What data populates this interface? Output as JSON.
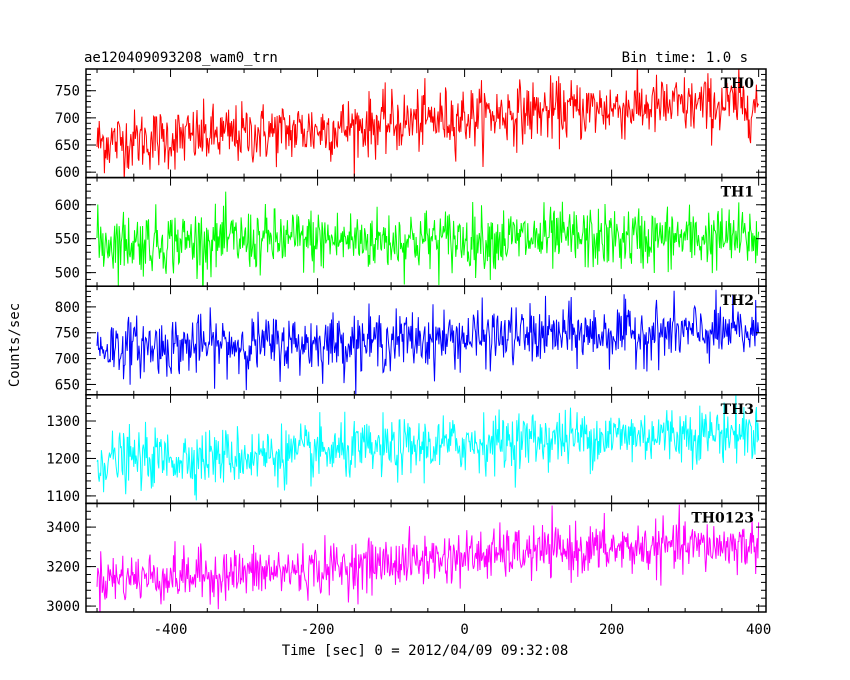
{
  "header": {
    "title": "ae120409093208_wam0_trn",
    "bin_time": "Bin time: 1.0 s"
  },
  "chart_data": {
    "type": "line",
    "title": "ae120409093208_wam0_trn",
    "subtitle": "Bin time: 1.0 s",
    "xlabel": "Time [sec] 0 = 2012/04/09 09:32:08",
    "ylabel": "Counts/sec",
    "xlim": [
      -515,
      410
    ],
    "xticks": [
      -400,
      -200,
      0,
      200,
      400
    ],
    "x_range_data": [
      -500,
      400
    ],
    "series": [
      {
        "name": "TH0",
        "color": "#ff0000",
        "ylim": [
          590,
          790
        ],
        "yticks": [
          600,
          650,
          700,
          750
        ],
        "x": [
          -500,
          -400,
          -300,
          -200,
          -100,
          0,
          100,
          200,
          300,
          400
        ],
        "values": [
          655,
          662,
          670,
          678,
          690,
          702,
          712,
          718,
          722,
          725
        ],
        "noise_sd": 28
      },
      {
        "name": "TH1",
        "color": "#00ff00",
        "ylim": [
          480,
          640
        ],
        "yticks": [
          500,
          550,
          600
        ],
        "x": [
          -500,
          -400,
          -300,
          -200,
          -100,
          0,
          100,
          200,
          300,
          400
        ],
        "values": [
          545,
          546,
          547,
          548,
          548,
          549,
          550,
          550,
          551,
          551
        ],
        "noise_sd": 23
      },
      {
        "name": "TH2",
        "color": "#0000ff",
        "ylim": [
          630,
          840
        ],
        "yticks": [
          650,
          700,
          750,
          800
        ],
        "x": [
          -500,
          -400,
          -300,
          -200,
          -100,
          0,
          100,
          200,
          300,
          400
        ],
        "values": [
          722,
          724,
          727,
          730,
          735,
          740,
          745,
          748,
          750,
          750
        ],
        "noise_sd": 28
      },
      {
        "name": "TH3",
        "color": "#00ffff",
        "ylim": [
          1080,
          1370
        ],
        "yticks": [
          1100,
          1200,
          1300
        ],
        "x": [
          -500,
          -400,
          -300,
          -200,
          -100,
          0,
          100,
          200,
          300,
          400
        ],
        "values": [
          1195,
          1200,
          1207,
          1215,
          1225,
          1240,
          1252,
          1260,
          1266,
          1270
        ],
        "noise_sd": 38
      },
      {
        "name": "TH0123",
        "color": "#ff00ff",
        "ylim": [
          2970,
          3520
        ],
        "yticks": [
          3000,
          3200,
          3400
        ],
        "x": [
          -500,
          -400,
          -300,
          -200,
          -100,
          0,
          100,
          200,
          300,
          400
        ],
        "values": [
          3140,
          3150,
          3165,
          3185,
          3220,
          3250,
          3275,
          3290,
          3300,
          3310
        ],
        "noise_sd": 65
      }
    ]
  }
}
